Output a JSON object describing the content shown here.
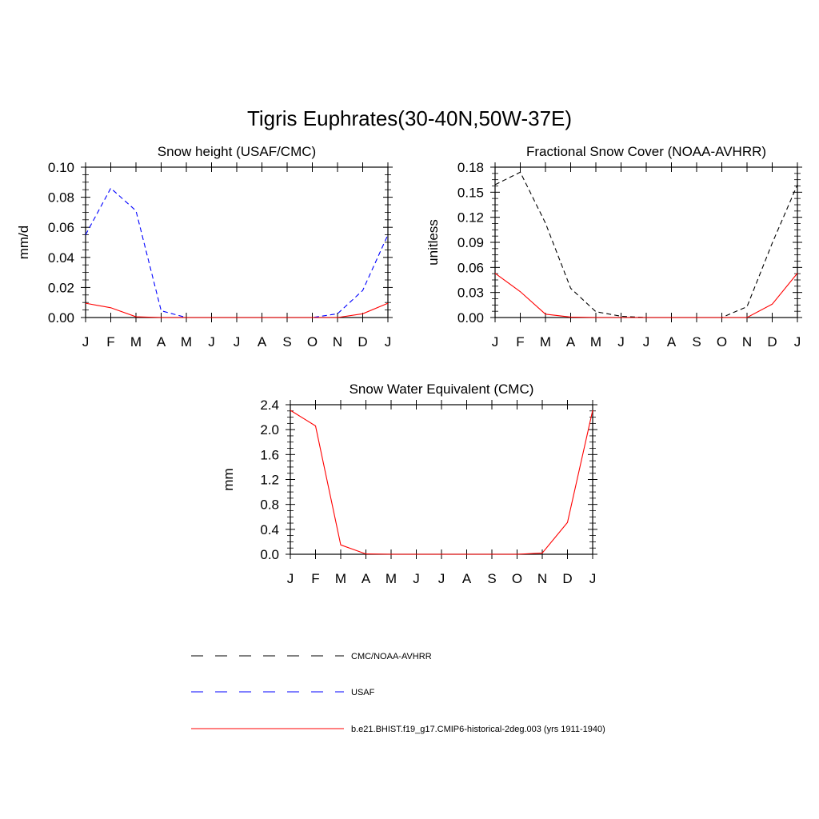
{
  "page": {
    "title": "Tigris Euphrates(30-40N,50W-37E)"
  },
  "colors": {
    "cmc_noaa": "#000000",
    "usaf": "#0000ff",
    "model": "#ff0000",
    "axis": "#000000"
  },
  "legend": [
    {
      "label": "CMC/NOAA-AVHRR",
      "color": "#000000",
      "style": "dashed"
    },
    {
      "label": "USAF",
      "color": "#0000ff",
      "style": "dashed"
    },
    {
      "label": "b.e21.BHIST.f19_g17.CMIP6-historical-2deg.003 (yrs 1911-1940)",
      "color": "#ff0000",
      "style": "solid"
    }
  ],
  "chart_data": [
    {
      "type": "line",
      "title": "Snow height (USAF/CMC)",
      "ylabel": "mm/d",
      "xlabel": "",
      "categories": [
        "J",
        "F",
        "M",
        "A",
        "M",
        "J",
        "J",
        "A",
        "S",
        "O",
        "N",
        "D",
        "J"
      ],
      "ylim": [
        0,
        0.1
      ],
      "yticks": [
        "0.00",
        "0.02",
        "0.04",
        "0.06",
        "0.08",
        "0.10"
      ],
      "series": [
        {
          "name": "CMC/NOAA-AVHRR",
          "color": "#000000",
          "dash": true,
          "values": [
            0,
            0,
            0,
            0,
            0,
            0,
            0,
            0,
            0,
            0,
            0,
            0,
            0
          ]
        },
        {
          "name": "USAF",
          "color": "#0000ff",
          "dash": true,
          "values": [
            0.055,
            0.086,
            0.071,
            0.0045,
            0,
            0,
            0,
            0,
            0,
            0,
            0.0025,
            0.018,
            0.055
          ]
        },
        {
          "name": "b.e21.BHIST.f19_g17.CMIP6-historical-2deg.003 (yrs 1911-1940)",
          "color": "#ff0000",
          "dash": false,
          "values": [
            0.0095,
            0.0065,
            0.0005,
            0,
            0,
            0,
            0,
            0,
            0,
            0,
            0,
            0.0025,
            0.0095
          ]
        }
      ]
    },
    {
      "type": "line",
      "title": "Fractional Snow Cover (NOAA-AVHRR)",
      "ylabel": "unitless",
      "xlabel": "",
      "categories": [
        "J",
        "F",
        "M",
        "A",
        "M",
        "J",
        "J",
        "A",
        "S",
        "O",
        "N",
        "D",
        "J"
      ],
      "ylim": [
        0,
        0.18
      ],
      "yticks": [
        "0.00",
        "0.03",
        "0.06",
        "0.09",
        "0.12",
        "0.15",
        "0.18"
      ],
      "series": [
        {
          "name": "CMC/NOAA-AVHRR",
          "color": "#000000",
          "dash": true,
          "values": [
            0.159,
            0.174,
            0.113,
            0.035,
            0.007,
            0.0015,
            0,
            0,
            0,
            0,
            0.013,
            0.089,
            0.159
          ]
        },
        {
          "name": "b.e21.BHIST.f19_g17.CMIP6-historical-2deg.003 (yrs 1911-1940)",
          "color": "#ff0000",
          "dash": false,
          "values": [
            0.053,
            0.031,
            0.004,
            0.0005,
            0,
            0,
            0,
            0,
            0,
            0,
            0,
            0.016,
            0.053
          ]
        }
      ]
    },
    {
      "type": "line",
      "title": "Snow Water Equivalent (CMC)",
      "ylabel": "mm",
      "xlabel": "",
      "categories": [
        "J",
        "F",
        "M",
        "A",
        "M",
        "J",
        "J",
        "A",
        "S",
        "O",
        "N",
        "D",
        "J"
      ],
      "ylim": [
        0,
        2.4
      ],
      "yticks": [
        "0.0",
        "0.4",
        "0.8",
        "1.2",
        "1.6",
        "2.0",
        "2.4"
      ],
      "series": [
        {
          "name": "CMC/NOAA-AVHRR",
          "color": "#000000",
          "dash": true,
          "values": [
            0,
            0,
            0,
            0,
            0,
            0,
            0,
            0,
            0,
            0,
            0,
            0,
            0
          ]
        },
        {
          "name": "b.e21.BHIST.f19_g17.CMIP6-historical-2deg.003 (yrs 1911-1940)",
          "color": "#ff0000",
          "dash": false,
          "values": [
            2.31,
            2.06,
            0.15,
            0.005,
            0,
            0,
            0,
            0,
            0,
            0,
            0.02,
            0.51,
            2.31
          ]
        }
      ]
    }
  ]
}
